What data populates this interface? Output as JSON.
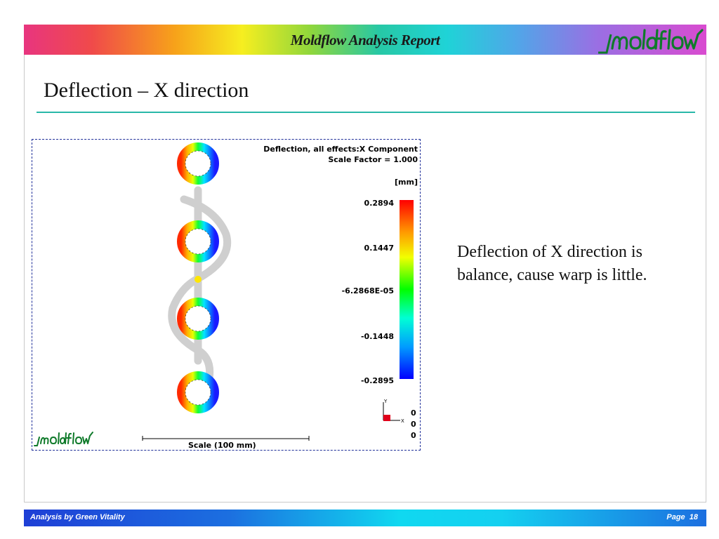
{
  "header": {
    "title": "Moldflow Analysis Report",
    "logo_text": "moldflow"
  },
  "slide": {
    "title": "Deflection – X direction"
  },
  "figure": {
    "result_title": "Deflection, all effects:X Component",
    "scale_factor": "Scale Factor = 1.000",
    "unit": "[mm]",
    "legend_ticks": [
      "0.2894",
      "0.1447",
      "-6.2868E-05",
      "-0.1448",
      "-0.2895"
    ],
    "axis_values": [
      "0",
      "0",
      "0"
    ],
    "axis_y_label": "Y",
    "axis_x_label": "X",
    "scale_label": "Scale (100 mm)",
    "logo_text": "moldflow"
  },
  "description": "Deflection of X direction is balance, cause warp is little.",
  "footer": {
    "left": "Analysis by Green Vitality",
    "right": "Page  18"
  },
  "colors": {
    "title_rule": "#29b8a8",
    "figure_border": "#1f2f99",
    "footer_text": "#ffffff"
  }
}
